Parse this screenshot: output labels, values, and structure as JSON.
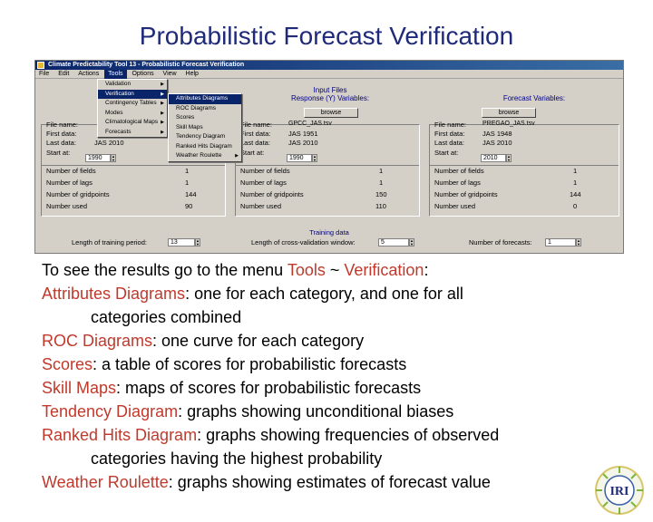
{
  "slide": {
    "title": "Probabilistic Forecast Verification"
  },
  "app": {
    "window_title": "Climate Predictability Tool 13 - Probabilistic Forecast Verification",
    "menubar": [
      "File",
      "Edit",
      "Actions",
      "Tools",
      "Options",
      "View",
      "Help"
    ],
    "input_files_label": "Input Files",
    "response_label": "Response (Y) Variables:",
    "forecast_label": "Forecast Variables:",
    "browse_label": "browse",
    "left_panel": {
      "file_name_label": "File name:",
      "first_data_label": "First data:",
      "last_data_label": "Last data:",
      "start_at_label": "Start at:",
      "last_data_value": "JAS 2010",
      "start_at_value": "1990",
      "stats": [
        {
          "label": "Number of fields",
          "value": "1"
        },
        {
          "label": "Number of lags",
          "value": "1"
        },
        {
          "label": "Number of gridpoints",
          "value": "144"
        },
        {
          "label": "Number used",
          "value": "90"
        }
      ]
    },
    "mid_panel": {
      "file_name_label": "File name:",
      "file_name_value": "GPCC_JAS.tsv",
      "first_data_label": "First data:",
      "first_data_value": "JAS 1951",
      "last_data_label": "Last data:",
      "last_data_value": "JAS 2010",
      "start_at_label": "Start at:",
      "start_at_value": "1990",
      "stats": [
        {
          "label": "Number of fields",
          "value": "1"
        },
        {
          "label": "Number of lags",
          "value": "1"
        },
        {
          "label": "Number of gridpoints",
          "value": "150"
        },
        {
          "label": "Number used",
          "value": "110"
        }
      ]
    },
    "right_panel": {
      "file_name_label": "File name:",
      "file_name_value": "PREGAO_JAS.tsv",
      "first_data_label": "First data:",
      "first_data_value": "JAS 1948",
      "last_data_label": "Last data:",
      "last_data_value": "JAS 2010",
      "start_at_label": "Start at:",
      "start_at_value": "2010",
      "stats": [
        {
          "label": "Number of fields",
          "value": "1"
        },
        {
          "label": "Number of lags",
          "value": "1"
        },
        {
          "label": "Number of gridpoints",
          "value": "144"
        },
        {
          "label": "Number used",
          "value": "0"
        }
      ]
    },
    "training_data_label": "Training data",
    "training_length_label": "Length of training period:",
    "training_length_value": "13",
    "cross_validation_label": "Length of cross-validation window:",
    "cross_validation_value": "5",
    "num_forecasts_label": "Number of forecasts:",
    "num_forecasts_value": "1",
    "tools_menu": [
      {
        "label": "Validation",
        "has_sub": true
      },
      {
        "label": "Verification",
        "has_sub": true,
        "highlight": true
      },
      {
        "label": "Contingency Tables",
        "has_sub": true
      },
      {
        "label": "Modes",
        "has_sub": true
      },
      {
        "label": "Climatological Maps",
        "has_sub": true
      },
      {
        "label": "Forecasts",
        "has_sub": true
      }
    ],
    "verification_menu": [
      {
        "label": "Attributes Diagrams",
        "highlight": true
      },
      {
        "label": "ROC Diagrams"
      },
      {
        "label": "Scores"
      },
      {
        "label": "Skill Maps"
      },
      {
        "label": "Tendency Diagram"
      },
      {
        "label": "Ranked Hits Diagram"
      },
      {
        "label": "Weather Roulette",
        "has_sub": true
      }
    ]
  },
  "text": {
    "intro_prefix": "To see the results go to the menu ",
    "intro_tools": "Tools",
    "intro_sep": " ~ ",
    "intro_verification": "Verification",
    "intro_suffix": ":",
    "items": [
      {
        "term": "Attributes Diagrams",
        "desc": ": one for each category, and one for all",
        "cont": "categories combined"
      },
      {
        "term": "ROC Diagrams",
        "desc": ": one curve for each category"
      },
      {
        "term": "Scores",
        "desc": ": a table of scores for probabilistic forecasts"
      },
      {
        "term": "Skill Maps",
        "desc": ": maps of scores for probabilistic forecasts"
      },
      {
        "term": "Tendency Diagram",
        "desc": ": graphs showing unconditional biases"
      },
      {
        "term": "Ranked Hits Diagram",
        "desc": ": graphs showing frequencies of observed",
        "cont": "categories having the highest probability"
      },
      {
        "term": "Weather Roulette",
        "desc": ": graphs showing estimates of forecast value"
      }
    ]
  },
  "logo": {
    "text": "IRI"
  },
  "colors": {
    "title": "#1f2a7a",
    "highlight": "#c0392b",
    "titlebar": "#0a246a"
  }
}
